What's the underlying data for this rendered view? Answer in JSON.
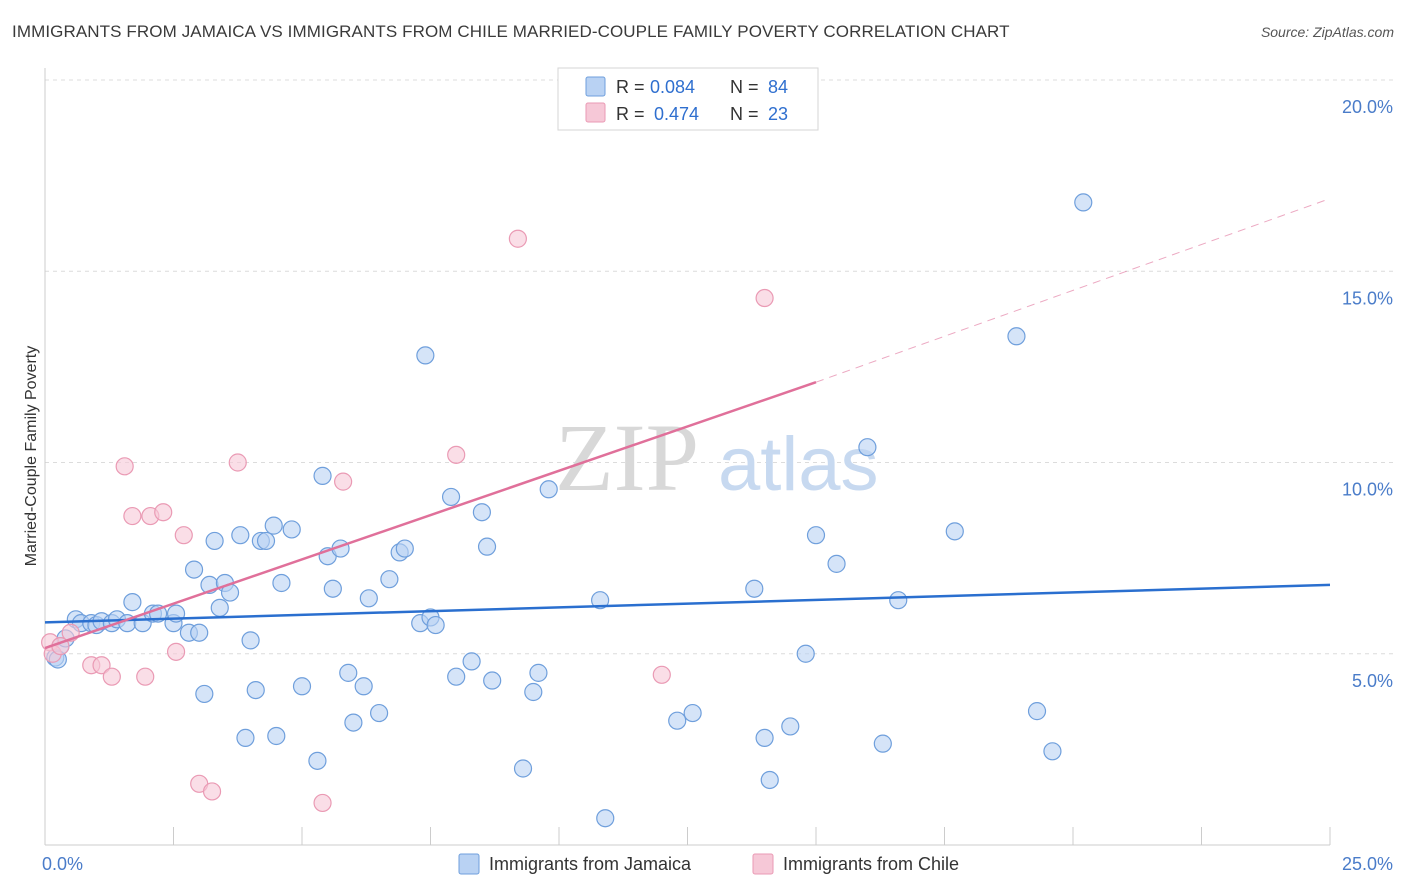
{
  "title": "IMMIGRANTS FROM JAMAICA VS IMMIGRANTS FROM CHILE MARRIED-COUPLE FAMILY POVERTY CORRELATION CHART",
  "source": "Source: ZipAtlas.com",
  "watermark": {
    "zip": "ZIP",
    "atlas": "atlas"
  },
  "colors": {
    "jamaica": "#6f9fdc",
    "jamaica_fill": "#b9d2f3",
    "jamaica_line": "#2a6fcf",
    "chile": "#ea9ab4",
    "chile_fill": "#f6c8d7",
    "chile_line": "#e0709a"
  },
  "legend": {
    "rows": [
      {
        "r_label": "R =",
        "r_value": "0.084",
        "n_label": "N =",
        "n_value": "84"
      },
      {
        "r_label": "R =",
        "r_value": "0.474",
        "n_label": "N =",
        "n_value": "23"
      }
    ]
  },
  "bottom_legend": [
    "Immigrants from Jamaica",
    "Immigrants from Chile"
  ],
  "chart_data": {
    "type": "scatter",
    "xlabel": "",
    "ylabel": "Married-Couple Family Poverty",
    "xlim": [
      0,
      25
    ],
    "ylim": [
      0,
      20
    ],
    "x_tick_labels": [
      {
        "value": 0,
        "label": "0.0%"
      },
      {
        "value": 25,
        "label": "25.0%"
      }
    ],
    "y_tick_labels": [
      {
        "value": 5,
        "label": "5.0%"
      },
      {
        "value": 10,
        "label": "10.0%"
      },
      {
        "value": 15,
        "label": "15.0%"
      },
      {
        "value": 20,
        "label": "20.0%"
      }
    ],
    "series": [
      {
        "name": "Immigrants from Jamaica",
        "r": 0.084,
        "n": 84,
        "trend": {
          "x0": 0,
          "y0": 5.82,
          "x1": 25,
          "y1": 6.8
        },
        "points": [
          [
            0.2,
            4.9
          ],
          [
            0.3,
            5.2
          ],
          [
            0.4,
            5.4
          ],
          [
            0.6,
            5.9
          ],
          [
            0.7,
            5.8
          ],
          [
            0.9,
            5.8
          ],
          [
            1.0,
            5.75
          ],
          [
            1.1,
            5.85
          ],
          [
            1.3,
            5.8
          ],
          [
            1.4,
            5.9
          ],
          [
            1.6,
            5.8
          ],
          [
            1.7,
            6.35
          ],
          [
            1.9,
            5.8
          ],
          [
            2.1,
            6.05
          ],
          [
            2.2,
            6.05
          ],
          [
            2.5,
            5.8
          ],
          [
            2.55,
            6.05
          ],
          [
            2.8,
            5.55
          ],
          [
            2.9,
            7.2
          ],
          [
            3.0,
            5.55
          ],
          [
            3.1,
            3.95
          ],
          [
            3.2,
            6.8
          ],
          [
            3.3,
            7.95
          ],
          [
            3.4,
            6.2
          ],
          [
            3.5,
            6.85
          ],
          [
            3.6,
            6.6
          ],
          [
            3.8,
            8.1
          ],
          [
            3.9,
            2.8
          ],
          [
            4.0,
            5.35
          ],
          [
            4.1,
            4.05
          ],
          [
            4.2,
            7.95
          ],
          [
            4.3,
            7.95
          ],
          [
            4.45,
            8.35
          ],
          [
            4.5,
            2.85
          ],
          [
            4.6,
            6.85
          ],
          [
            4.8,
            8.25
          ],
          [
            5.0,
            4.15
          ],
          [
            5.3,
            2.2
          ],
          [
            5.4,
            9.65
          ],
          [
            5.5,
            7.55
          ],
          [
            5.6,
            6.7
          ],
          [
            5.75,
            7.75
          ],
          [
            5.9,
            4.5
          ],
          [
            6.0,
            3.2
          ],
          [
            6.2,
            4.15
          ],
          [
            6.3,
            6.45
          ],
          [
            6.5,
            3.45
          ],
          [
            6.7,
            6.95
          ],
          [
            6.9,
            7.65
          ],
          [
            7.0,
            7.75
          ],
          [
            7.3,
            5.8
          ],
          [
            7.5,
            5.95
          ],
          [
            7.6,
            5.75
          ],
          [
            7.4,
            12.8
          ],
          [
            7.9,
            9.1
          ],
          [
            8.0,
            4.4
          ],
          [
            8.3,
            4.8
          ],
          [
            8.5,
            8.7
          ],
          [
            8.6,
            7.8
          ],
          [
            8.7,
            4.3
          ],
          [
            9.3,
            2.0
          ],
          [
            9.5,
            4.0
          ],
          [
            9.6,
            4.5
          ],
          [
            9.8,
            9.3
          ],
          [
            10.8,
            6.4
          ],
          [
            10.9,
            0.7
          ],
          [
            12.3,
            3.25
          ],
          [
            12.6,
            3.45
          ],
          [
            13.8,
            6.7
          ],
          [
            14.0,
            2.8
          ],
          [
            14.1,
            1.7
          ],
          [
            14.5,
            3.1
          ],
          [
            14.8,
            5.0
          ],
          [
            15.0,
            8.1
          ],
          [
            15.4,
            7.35
          ],
          [
            16.0,
            10.4
          ],
          [
            16.3,
            2.65
          ],
          [
            16.6,
            6.4
          ],
          [
            17.7,
            8.2
          ],
          [
            18.9,
            13.3
          ],
          [
            19.3,
            3.5
          ],
          [
            19.6,
            2.45
          ],
          [
            20.2,
            16.8
          ],
          [
            0.25,
            4.85
          ]
        ]
      },
      {
        "name": "Immigrants from Chile",
        "r": 0.474,
        "n": 23,
        "trend": {
          "x0": 0,
          "y0": 5.15,
          "x1": 15,
          "y1": 12.1,
          "dash_x1": 25,
          "dash_y1": 16.9
        },
        "points": [
          [
            0.1,
            5.3
          ],
          [
            0.15,
            5.0
          ],
          [
            0.3,
            5.2
          ],
          [
            0.5,
            5.55
          ],
          [
            0.9,
            4.7
          ],
          [
            1.1,
            4.7
          ],
          [
            1.3,
            4.4
          ],
          [
            1.55,
            9.9
          ],
          [
            1.7,
            8.6
          ],
          [
            1.95,
            4.4
          ],
          [
            2.05,
            8.6
          ],
          [
            2.3,
            8.7
          ],
          [
            2.55,
            5.05
          ],
          [
            2.7,
            8.1
          ],
          [
            3.0,
            1.6
          ],
          [
            3.25,
            1.4
          ],
          [
            3.75,
            10.0
          ],
          [
            5.4,
            1.1
          ],
          [
            5.8,
            9.5
          ],
          [
            8.0,
            10.2
          ],
          [
            9.2,
            15.85
          ],
          [
            12.0,
            4.45
          ],
          [
            14.0,
            14.3
          ]
        ]
      }
    ]
  }
}
